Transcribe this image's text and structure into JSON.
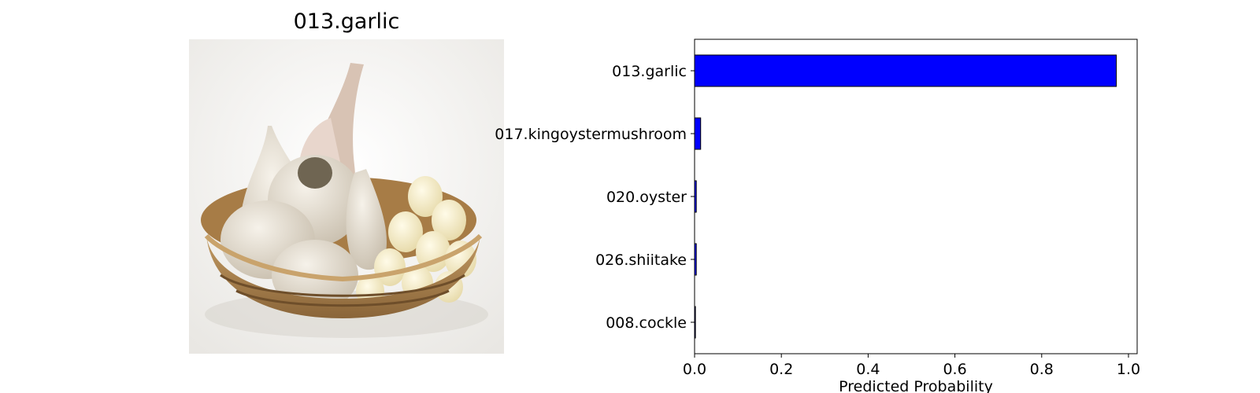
{
  "image_panel": {
    "title": "013.garlic",
    "image_subject": "garlic bulbs and peeled cloves in a woven basket"
  },
  "chart_data": {
    "type": "bar",
    "orientation": "horizontal",
    "categories": [
      "013.garlic",
      "017.kingoystermushroom",
      "020.oyster",
      "026.shiitake",
      "008.cockle"
    ],
    "values": [
      0.972,
      0.014,
      0.004,
      0.004,
      0.002
    ],
    "xlabel": "Predicted Probability",
    "ylabel": "",
    "xlim": [
      0.0,
      1.02
    ],
    "xticks": [
      "0.0",
      "0.2",
      "0.4",
      "0.6",
      "0.8",
      "1.0"
    ],
    "bar_color": "#0000ff",
    "edge_color": "#000000",
    "grid": false
  }
}
